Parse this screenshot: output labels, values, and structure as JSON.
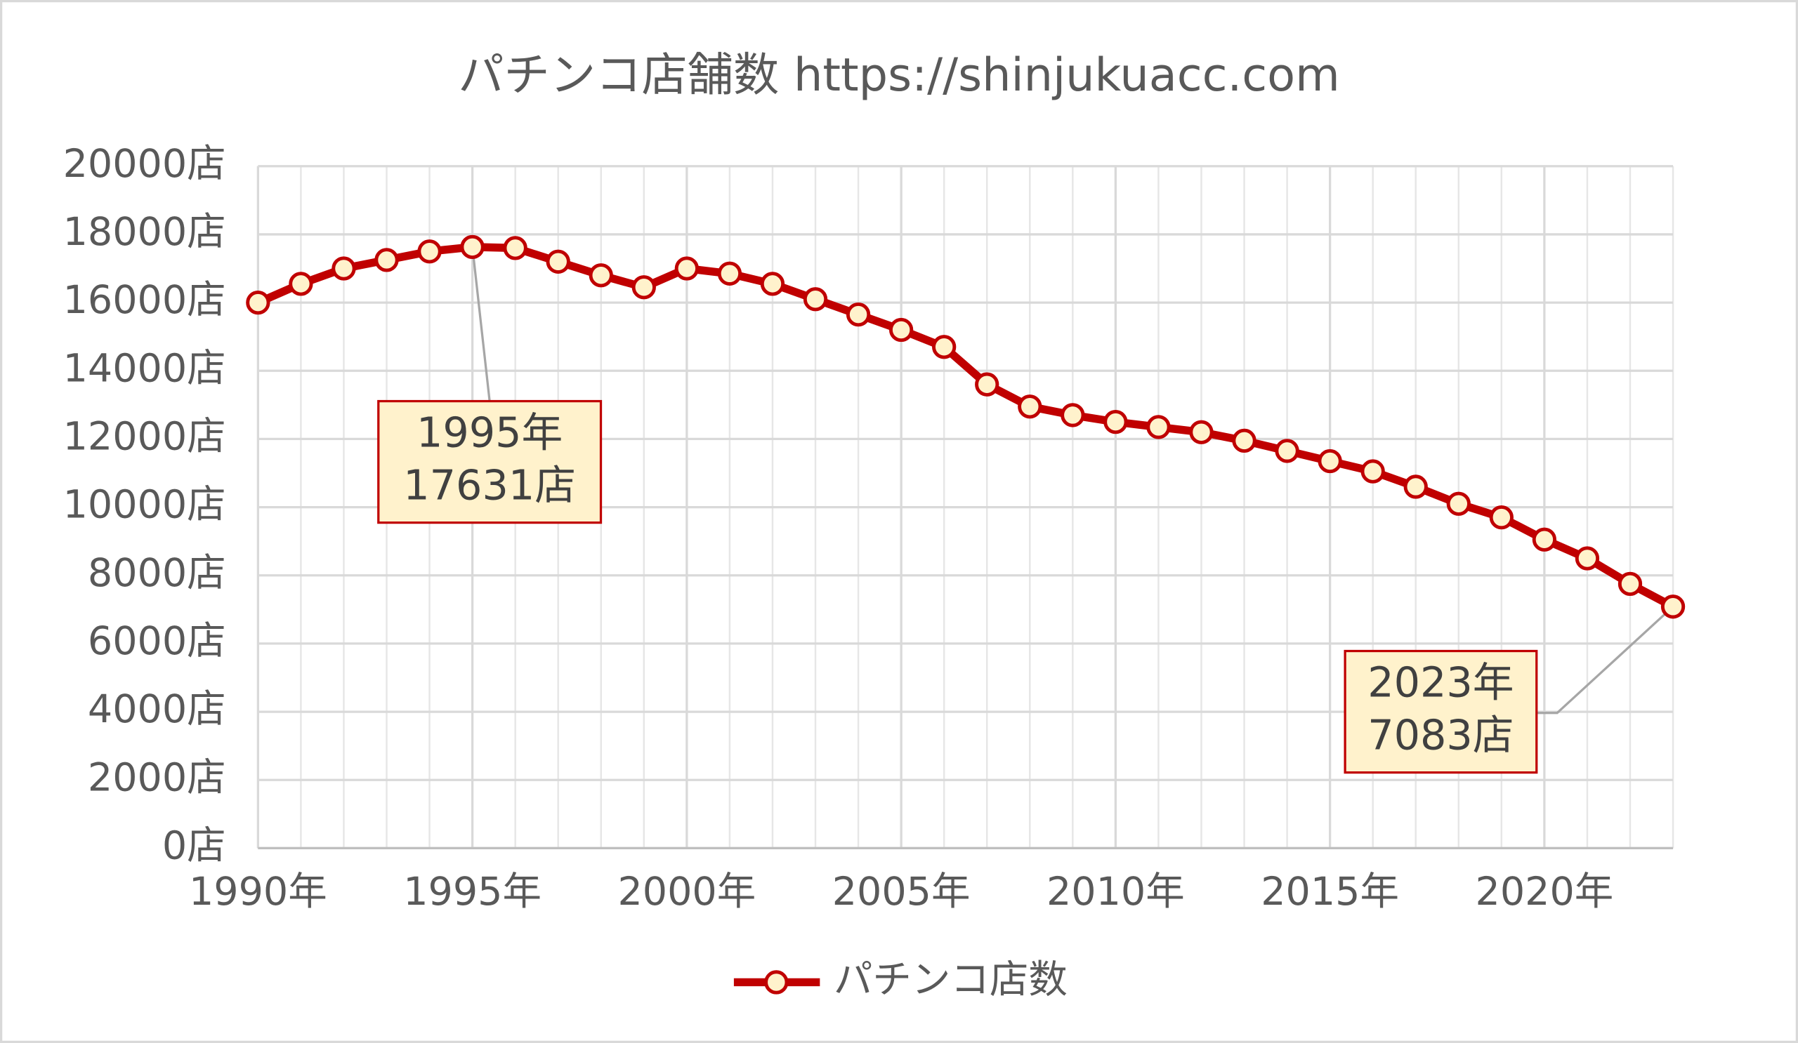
{
  "chart_data": {
    "type": "line",
    "title": "パチンコ店舗数 https://shinjukuacc.com",
    "x": [
      1990,
      1991,
      1992,
      1993,
      1994,
      1995,
      1996,
      1997,
      1998,
      1999,
      2000,
      2001,
      2002,
      2003,
      2004,
      2005,
      2006,
      2007,
      2008,
      2009,
      2010,
      2011,
      2012,
      2013,
      2014,
      2015,
      2016,
      2017,
      2018,
      2019,
      2020,
      2021,
      2022,
      2023
    ],
    "series": [
      {
        "name": "パチンコ店数",
        "color": "#c00000",
        "marker_fill": "#fff2cc",
        "values": [
          16000,
          16550,
          17000,
          17250,
          17500,
          17631,
          17600,
          17200,
          16800,
          16450,
          17000,
          16850,
          16550,
          16100,
          15650,
          15200,
          14700,
          13600,
          12950,
          12700,
          12500,
          12350,
          12200,
          11950,
          11650,
          11350,
          11050,
          10600,
          10100,
          9700,
          9050,
          8500,
          7750,
          7083
        ]
      }
    ],
    "xlim": [
      1990,
      2023
    ],
    "xticks": [
      {
        "value": 1990,
        "label": "1990年"
      },
      {
        "value": 1995,
        "label": "1995年"
      },
      {
        "value": 2000,
        "label": "2000年"
      },
      {
        "value": 2005,
        "label": "2005年"
      },
      {
        "value": 2010,
        "label": "2010年"
      },
      {
        "value": 2015,
        "label": "2015年"
      },
      {
        "value": 2020,
        "label": "2020年"
      }
    ],
    "ylim": [
      0,
      20000
    ],
    "yticks": [
      {
        "value": 0,
        "label": "0店"
      },
      {
        "value": 2000,
        "label": "2000店"
      },
      {
        "value": 4000,
        "label": "4000店"
      },
      {
        "value": 6000,
        "label": "6000店"
      },
      {
        "value": 8000,
        "label": "8000店"
      },
      {
        "value": 10000,
        "label": "10000店"
      },
      {
        "value": 12000,
        "label": "12000店"
      },
      {
        "value": 14000,
        "label": "14000店"
      },
      {
        "value": 16000,
        "label": "16000店"
      },
      {
        "value": 18000,
        "label": "18000店"
      },
      {
        "value": 20000,
        "label": "20000店"
      }
    ],
    "grid": true,
    "legend": "bottom",
    "annotations": [
      {
        "x": 1995,
        "lines": [
          "1995年",
          "17631店"
        ]
      },
      {
        "x": 2023,
        "lines": [
          "2023年",
          "7083店"
        ]
      }
    ]
  }
}
